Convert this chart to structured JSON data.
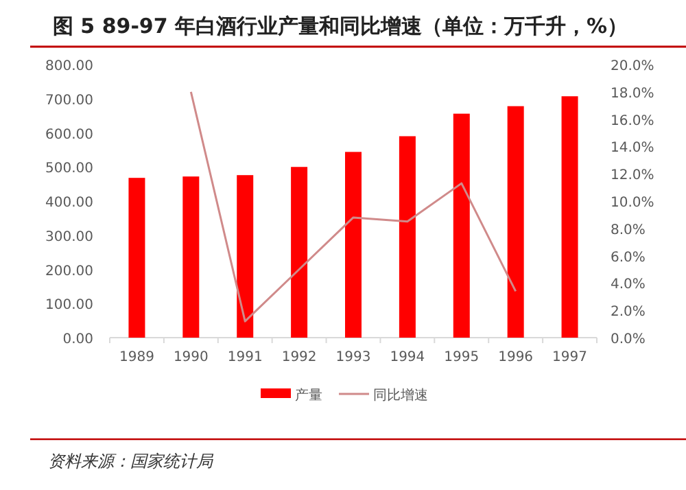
{
  "chart_data": {
    "type": "bar",
    "title": "图 5 89-97 年白酒行业产量和同比增速（单位：万千升，%）",
    "categories": [
      "1989",
      "1990",
      "1991",
      "1992",
      "1993",
      "1994",
      "1995",
      "1996",
      "1997"
    ],
    "series": [
      {
        "name": "产量",
        "color": "#ff0000",
        "values": [
          468,
          472,
          476,
          500,
          544,
          590,
          656,
          678,
          707
        ]
      },
      {
        "name": "同比增速",
        "type": "line",
        "axis": "y2",
        "color": "#d08a8a",
        "values": [
          null,
          18.0,
          1.2,
          5.0,
          8.8,
          8.5,
          11.3,
          3.4,
          null
        ]
      }
    ],
    "ylim": [
      0,
      800
    ],
    "yticks": [
      {
        "value": 0,
        "label": "0.00"
      },
      {
        "value": 100,
        "label": "100.00"
      },
      {
        "value": 200,
        "label": "200.00"
      },
      {
        "value": 300,
        "label": "300.00"
      },
      {
        "value": 400,
        "label": "400.00"
      },
      {
        "value": 500,
        "label": "500.00"
      },
      {
        "value": 600,
        "label": "600.00"
      },
      {
        "value": 700,
        "label": "700.00"
      },
      {
        "value": 800,
        "label": "800.00"
      }
    ],
    "y2lim": [
      0,
      20
    ],
    "y2ticks": [
      {
        "value": 0,
        "label": "0.0%"
      },
      {
        "value": 2,
        "label": "2.0%"
      },
      {
        "value": 4,
        "label": "4.0%"
      },
      {
        "value": 6,
        "label": "6.0%"
      },
      {
        "value": 8,
        "label": "8.0%"
      },
      {
        "value": 10,
        "label": "10.0%"
      },
      {
        "value": 12,
        "label": "12.0%"
      },
      {
        "value": 14,
        "label": "14.0%"
      },
      {
        "value": 16,
        "label": "16.0%"
      },
      {
        "value": 18,
        "label": "18.0%"
      },
      {
        "value": 20,
        "label": "20.0%"
      }
    ],
    "legend": "bottom",
    "annotations": [
      "资料来源：国家统计局"
    ]
  }
}
